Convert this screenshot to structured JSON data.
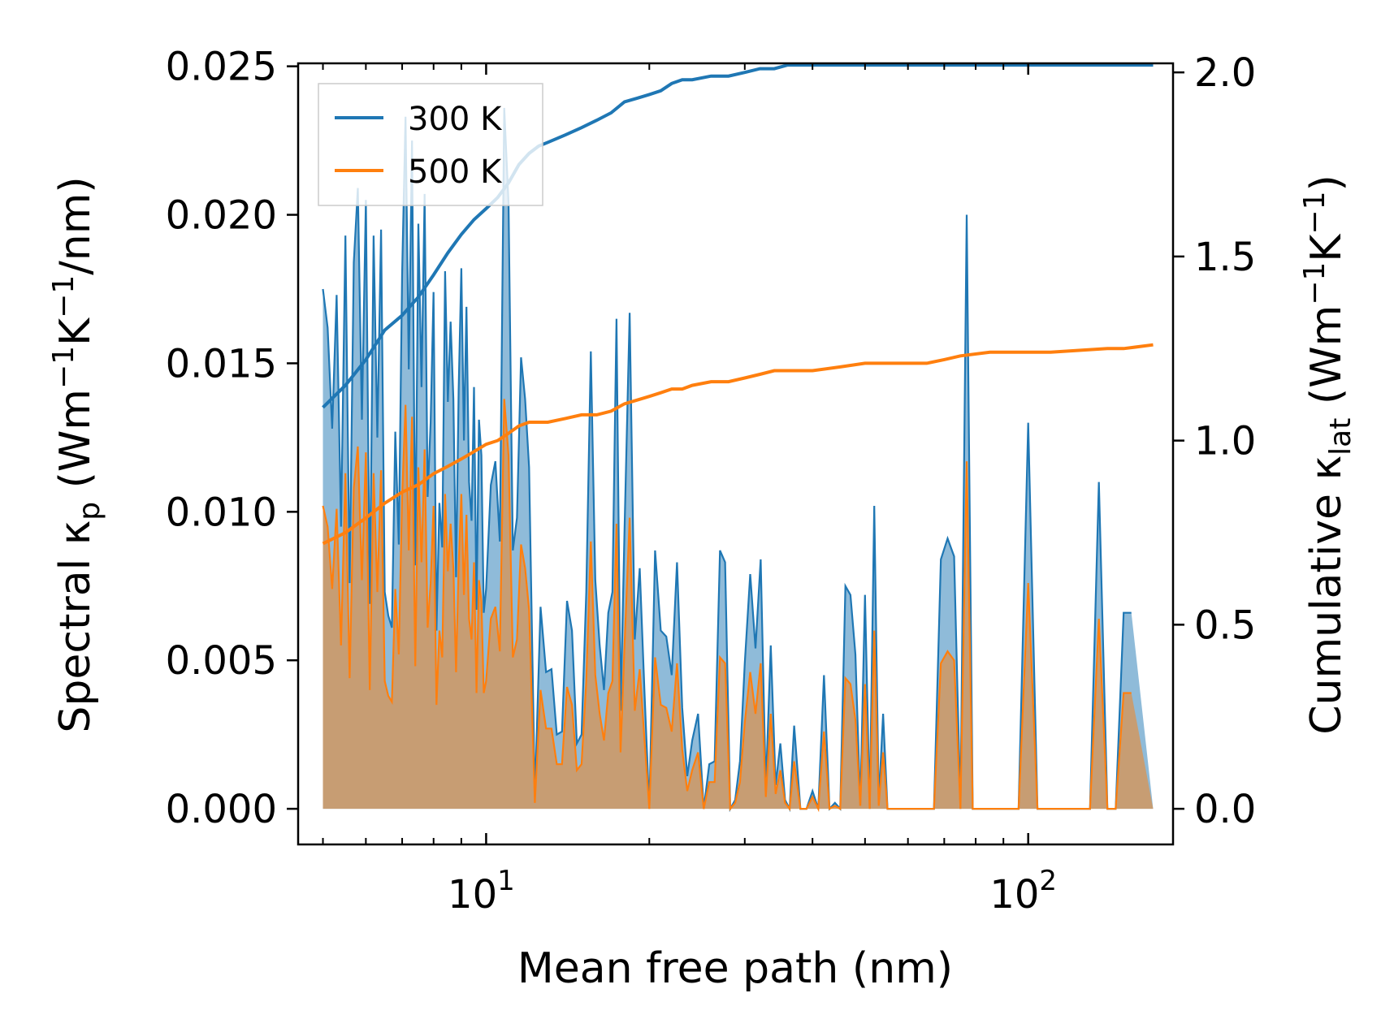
{
  "chart_data": {
    "type": "line",
    "xscale": "log",
    "xlim": [
      4.5,
      185
    ],
    "ylim_left": [
      -0.0012,
      0.0251
    ],
    "ylim_right": [
      -0.0968,
      2.0246
    ],
    "xlabel": "Mean free path (nm)",
    "ylabel_left": {
      "main": "Spectral κ",
      "sub": "p",
      "unit_open": " (Wm",
      "sup1": "−1",
      "mid": "K",
      "sup2": "−1",
      "unit_close": "/nm)"
    },
    "ylabel_right": {
      "main": "Cumulative κ",
      "sub": "lat",
      "unit_open": " (Wm",
      "sup1": "−1",
      "mid": "K",
      "sup2": "−1",
      "unit_close": ")"
    },
    "x_ticks": [
      {
        "value": 10,
        "base": "10",
        "exp": "1"
      },
      {
        "value": 100,
        "base": "10",
        "exp": "2"
      }
    ],
    "y_ticks_left": [
      {
        "value": 0.0,
        "label": "0.000"
      },
      {
        "value": 0.005,
        "label": "0.005"
      },
      {
        "value": 0.01,
        "label": "0.010"
      },
      {
        "value": 0.015,
        "label": "0.015"
      },
      {
        "value": 0.02,
        "label": "0.020"
      },
      {
        "value": 0.025,
        "label": "0.025"
      }
    ],
    "y_ticks_right": [
      {
        "value": 0.0,
        "label": "0.0"
      },
      {
        "value": 0.5,
        "label": "0.5"
      },
      {
        "value": 1.0,
        "label": "1.0"
      },
      {
        "value": 1.5,
        "label": "1.5"
      },
      {
        "value": 2.0,
        "label": "2.0"
      }
    ],
    "legend": {
      "location": "upper-left",
      "entries": [
        "300 K",
        "500 K"
      ]
    },
    "series_colors": {
      "300 K": "#1f77b4",
      "500 K": "#ff7f0e"
    },
    "spectral_x": [
      5.0,
      5.1,
      5.2,
      5.3,
      5.4,
      5.5,
      5.6,
      5.7,
      5.8,
      5.9,
      6.0,
      6.1,
      6.2,
      6.3,
      6.4,
      6.5,
      6.6,
      6.7,
      6.8,
      6.9,
      7.0,
      7.1,
      7.2,
      7.3,
      7.4,
      7.5,
      7.6,
      7.7,
      7.8,
      7.9,
      8.0,
      8.1,
      8.2,
      8.3,
      8.4,
      8.5,
      8.6,
      8.7,
      8.8,
      8.9,
      9.0,
      9.1,
      9.2,
      9.3,
      9.4,
      9.5,
      9.6,
      9.7,
      9.8,
      9.9,
      10.0,
      10.2,
      10.4,
      10.6,
      10.8,
      11.0,
      11.2,
      11.4,
      11.6,
      11.8,
      12.0,
      12.3,
      12.6,
      12.9,
      13.2,
      13.5,
      13.8,
      14.1,
      14.4,
      14.7,
      15.0,
      15.3,
      15.6,
      15.9,
      16.2,
      16.5,
      16.8,
      17.1,
      17.4,
      17.7,
      18.0,
      18.4,
      18.8,
      19.2,
      19.6,
      20.0,
      20.5,
      21.0,
      21.5,
      22.0,
      22.5,
      23.0,
      23.5,
      24.0,
      24.6,
      25.2,
      25.8,
      26.4,
      27.0,
      27.6,
      28.2,
      28.8,
      29.4,
      30.0,
      30.7,
      31.4,
      32.1,
      32.8,
      33.5,
      34.2,
      34.9,
      35.6,
      36.3,
      37.0,
      38.0,
      39.0,
      40.0,
      41.0,
      42.0,
      43.0,
      44.0,
      45.0,
      46.0,
      47.0,
      48.0,
      49.0,
      50.0,
      51.0,
      52.0,
      53.0,
      54.0,
      55.0,
      57.0,
      59.0,
      61.0,
      63.0,
      65.0,
      67.0,
      69.0,
      71.0,
      73.0,
      75.0,
      77.0,
      79.0,
      81.0,
      84.0,
      88.0,
      92.0,
      96.0,
      100.0,
      104.0,
      107.0,
      110.0,
      114.0,
      118.0,
      122.0,
      126.0,
      130.0,
      135.0,
      140.0,
      145.0,
      150.0,
      155.0,
      160.0,
      165.0,
      170.0
    ],
    "spectral_300K": [
      0.0175,
      0.0162,
      0.0128,
      0.0173,
      0.0095,
      0.0193,
      0.0076,
      0.0184,
      0.0209,
      0.0131,
      0.0205,
      0.0069,
      0.0193,
      0.0125,
      0.0195,
      0.0073,
      0.0065,
      0.0061,
      0.0127,
      0.0089,
      0.018,
      0.0233,
      0.0148,
      0.0225,
      0.0082,
      0.0197,
      0.0142,
      0.0207,
      0.0105,
      0.013,
      0.0174,
      0.006,
      0.0103,
      0.0088,
      0.0181,
      0.0137,
      0.0164,
      0.0138,
      0.0078,
      0.0141,
      0.0182,
      0.0124,
      0.0169,
      0.011,
      0.0097,
      0.0142,
      0.0067,
      0.0131,
      0.0119,
      0.0066,
      0.0074,
      0.0109,
      0.0117,
      0.009,
      0.0236,
      0.0204,
      0.0087,
      0.0098,
      0.0152,
      0.0138,
      0.0115,
      0.0004,
      0.0068,
      0.0046,
      0.0047,
      0.0025,
      0.0026,
      0.007,
      0.006,
      0.0022,
      0.0025,
      0.0073,
      0.0154,
      0.0077,
      0.0055,
      0.004,
      0.0066,
      0.0073,
      0.0165,
      0.0033,
      0.0094,
      0.0167,
      0.0057,
      0.0081,
      0.0039,
      0.0,
      0.0087,
      0.006,
      0.0058,
      0.0045,
      0.0083,
      0.0034,
      0.0011,
      0.0023,
      0.0032,
      0.0,
      0.0015,
      0.0016,
      0.0087,
      0.0083,
      0.0,
      0.0003,
      0.0016,
      0.0049,
      0.0079,
      0.0054,
      0.0084,
      0.0007,
      0.0055,
      0.0008,
      0.0022,
      0.0003,
      0.0,
      0.0028,
      0.0,
      0.0,
      0.0006,
      0.0,
      0.0045,
      0.0,
      0.0002,
      0.0,
      0.0075,
      0.0072,
      0.0052,
      0.0001,
      0.0072,
      0.0,
      0.0102,
      0.0002,
      0.0032,
      0.0,
      0.0,
      0.0,
      0.0,
      0.0,
      0.0,
      0.0,
      0.0084,
      0.0091,
      0.0085,
      0.0,
      0.02,
      0.0,
      0.0,
      0.0,
      0.0,
      0.0,
      0.0,
      0.013,
      0.0,
      0.0,
      0.0,
      0.0,
      0.0,
      0.0,
      0.0,
      0.0,
      0.011,
      0.0,
      0.0,
      0.0066,
      0.0066
    ],
    "spectral_500K": [
      0.0102,
      0.0095,
      0.0074,
      0.0101,
      0.0055,
      0.0113,
      0.0044,
      0.0108,
      0.0122,
      0.0077,
      0.012,
      0.004,
      0.0113,
      0.0073,
      0.0114,
      0.0043,
      0.0038,
      0.0036,
      0.0074,
      0.0052,
      0.0105,
      0.0136,
      0.0087,
      0.0132,
      0.0048,
      0.0115,
      0.0083,
      0.0121,
      0.0061,
      0.0076,
      0.0102,
      0.0035,
      0.006,
      0.0051,
      0.0106,
      0.008,
      0.0096,
      0.0081,
      0.0046,
      0.0082,
      0.0106,
      0.0072,
      0.0099,
      0.0064,
      0.0057,
      0.0083,
      0.0039,
      0.0077,
      0.007,
      0.0039,
      0.0043,
      0.0064,
      0.0068,
      0.0053,
      0.0138,
      0.0119,
      0.0051,
      0.0057,
      0.0089,
      0.0081,
      0.0067,
      0.0002,
      0.004,
      0.0027,
      0.0027,
      0.0015,
      0.0015,
      0.0041,
      0.0035,
      0.0013,
      0.0015,
      0.0043,
      0.009,
      0.0045,
      0.0032,
      0.0023,
      0.0039,
      0.0043,
      0.0096,
      0.0019,
      0.0055,
      0.0098,
      0.0033,
      0.0047,
      0.0023,
      0.0,
      0.0051,
      0.0035,
      0.0034,
      0.0026,
      0.0049,
      0.002,
      0.0006,
      0.0013,
      0.0019,
      0.0,
      0.0009,
      0.0009,
      0.0051,
      0.0049,
      0.0,
      0.0002,
      0.0009,
      0.0029,
      0.0046,
      0.0032,
      0.0049,
      0.0004,
      0.0032,
      0.0005,
      0.0013,
      0.0002,
      0.0,
      0.0016,
      0.0,
      0.0,
      0.0004,
      0.0,
      0.0026,
      0.0,
      0.0001,
      0.0,
      0.0044,
      0.0042,
      0.003,
      0.0001,
      0.0042,
      0.0,
      0.006,
      0.0001,
      0.0019,
      0.0,
      0.0,
      0.0,
      0.0,
      0.0,
      0.0,
      0.0,
      0.0049,
      0.0053,
      0.005,
      0.0,
      0.0117,
      0.0,
      0.0,
      0.0,
      0.0,
      0.0,
      0.0,
      0.0076,
      0.0,
      0.0,
      0.0,
      0.0,
      0.0,
      0.0,
      0.0,
      0.0,
      0.0064,
      0.0,
      0.0,
      0.0039,
      0.0039
    ],
    "cumulative_300K": {
      "x": [
        5.0,
        5.5,
        6.0,
        6.5,
        7.0,
        7.5,
        8.0,
        8.5,
        9.0,
        9.5,
        10.0,
        10.5,
        11.0,
        11.5,
        12.0,
        12.5,
        13.0,
        14.0,
        15.0,
        16.0,
        17.0,
        18.0,
        19.0,
        20.0,
        21.0,
        22.0,
        23.0,
        24.0,
        26.0,
        28.0,
        30.0,
        32.0,
        34.0,
        36.0,
        40.0,
        45.0,
        50.0,
        55.0,
        65.0,
        70.0,
        75.0,
        85.0,
        100.0,
        110.0,
        140.0,
        150.0,
        170.0
      ],
      "values": [
        1.09,
        1.15,
        1.22,
        1.3,
        1.34,
        1.39,
        1.45,
        1.51,
        1.56,
        1.6,
        1.63,
        1.66,
        1.7,
        1.75,
        1.78,
        1.8,
        1.81,
        1.83,
        1.85,
        1.87,
        1.89,
        1.92,
        1.93,
        1.94,
        1.95,
        1.97,
        1.98,
        1.98,
        1.99,
        1.99,
        2.0,
        2.01,
        2.01,
        2.02,
        2.02,
        2.02,
        2.02,
        2.02,
        2.02,
        2.02,
        2.02,
        2.02,
        2.02,
        2.02,
        2.02,
        2.02,
        2.02
      ]
    },
    "cumulative_500K": {
      "x": [
        5.0,
        5.5,
        6.0,
        6.5,
        7.0,
        7.5,
        8.0,
        8.5,
        9.0,
        9.5,
        10.0,
        10.5,
        11.0,
        11.5,
        12.0,
        12.5,
        13.0,
        14.0,
        15.0,
        16.0,
        17.0,
        18.0,
        19.0,
        20.0,
        21.0,
        22.0,
        23.0,
        24.0,
        26.0,
        28.0,
        30.0,
        32.0,
        34.0,
        36.0,
        40.0,
        45.0,
        50.0,
        55.0,
        65.0,
        70.0,
        75.0,
        85.0,
        100.0,
        110.0,
        140.0,
        150.0,
        170.0
      ],
      "values": [
        0.72,
        0.75,
        0.79,
        0.83,
        0.86,
        0.88,
        0.91,
        0.93,
        0.95,
        0.97,
        0.99,
        1.0,
        1.02,
        1.04,
        1.05,
        1.05,
        1.05,
        1.06,
        1.07,
        1.07,
        1.08,
        1.1,
        1.11,
        1.12,
        1.13,
        1.14,
        1.14,
        1.15,
        1.16,
        1.16,
        1.17,
        1.18,
        1.19,
        1.19,
        1.19,
        1.2,
        1.21,
        1.21,
        1.21,
        1.22,
        1.23,
        1.24,
        1.24,
        1.24,
        1.25,
        1.25,
        1.26
      ]
    }
  }
}
